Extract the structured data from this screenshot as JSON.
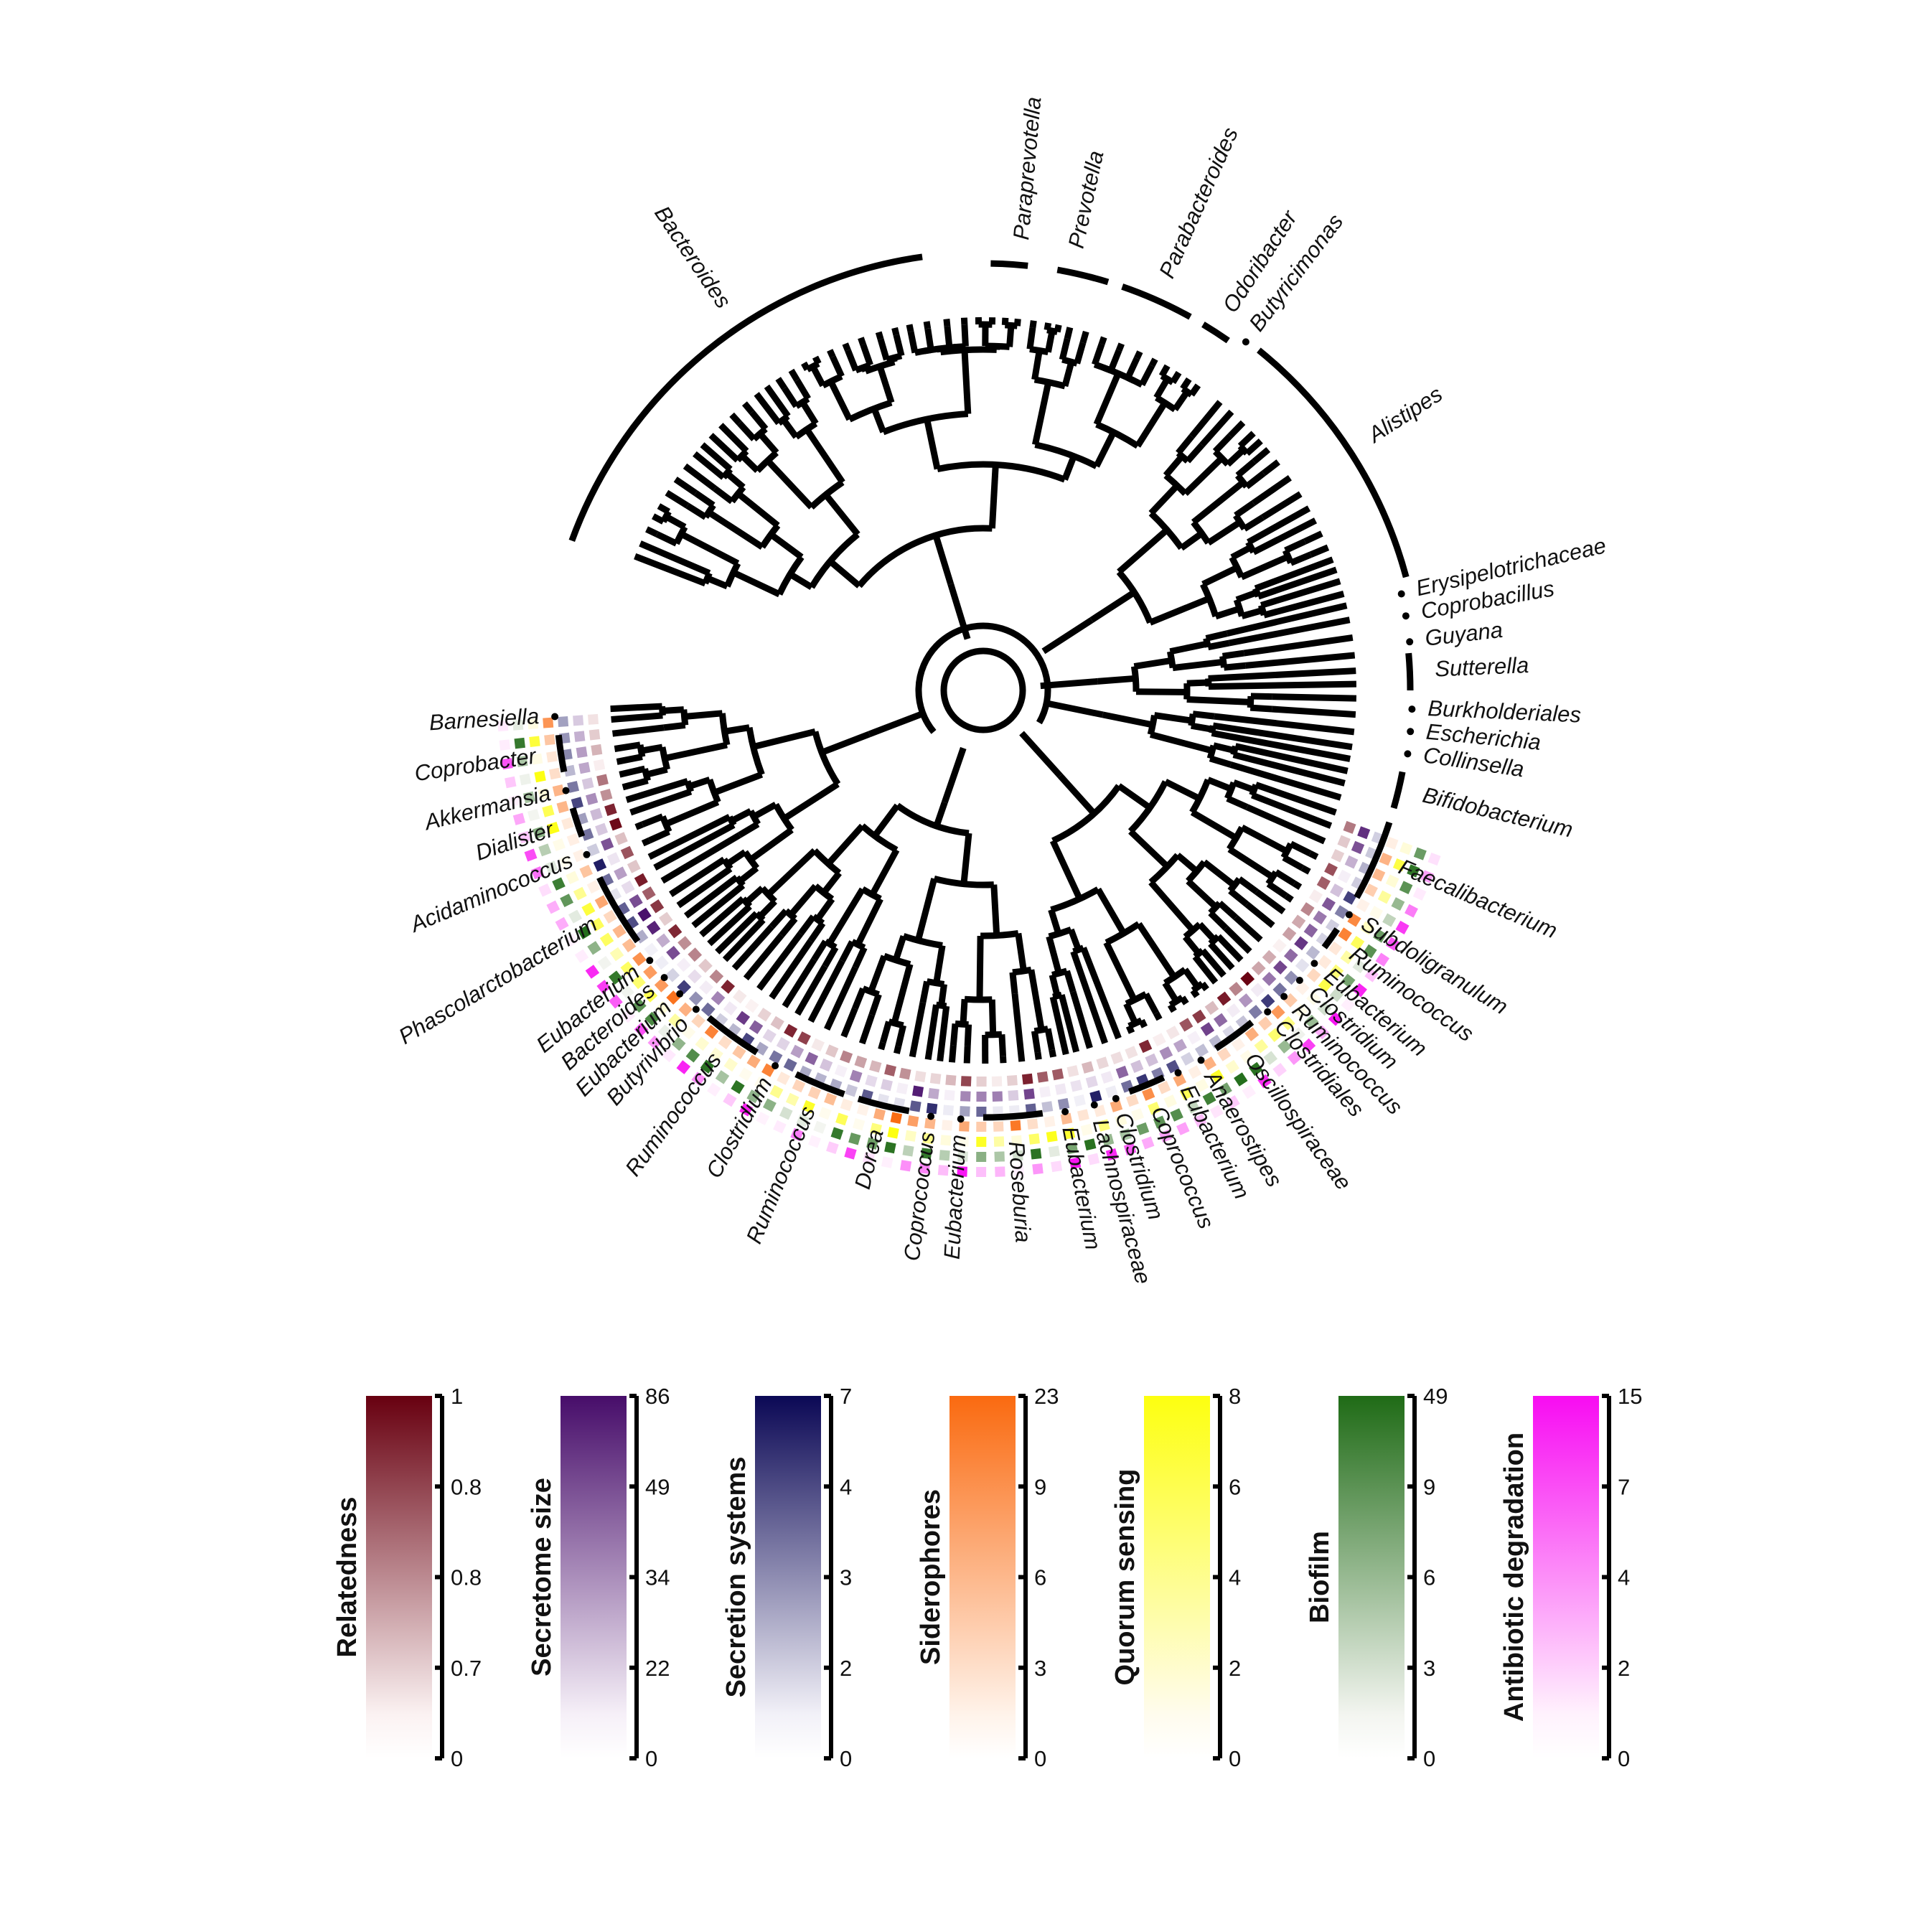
{
  "figure": {
    "genus_labels": [
      {
        "text": "Bacteroides",
        "angle": 236,
        "radius": 655,
        "bracket": [
          200,
          262
        ],
        "dot": false
      },
      {
        "text": "Paraprevotella",
        "angle": 275,
        "radius": 640,
        "bracket": [
          271,
          276
        ],
        "dot": false
      },
      {
        "text": "Prevotella",
        "angle": 282,
        "radius": 640,
        "bracket": [
          280,
          287
        ],
        "dot": false
      },
      {
        "text": "Parabacteroides",
        "angle": 294,
        "radius": 640,
        "bracket": [
          289,
          299
        ],
        "dot": false
      },
      {
        "text": "Odoribacter",
        "angle": 303,
        "radius": 640,
        "bracket": [
          301,
          305
        ],
        "dot": false
      },
      {
        "text": "Butyricimonas",
        "angle": 307,
        "radius": 640,
        "bracket": null,
        "dot": true
      },
      {
        "text": "Alistipes",
        "angle": 327,
        "radius": 655,
        "bracket": [
          309,
          345
        ],
        "dot": false
      },
      {
        "text": "Erysipelotrichaceae",
        "angle": 347,
        "radius": 630,
        "bracket": null,
        "dot": true
      },
      {
        "text": "Coprobacillus",
        "angle": 350,
        "radius": 630,
        "bracket": null,
        "dot": true
      },
      {
        "text": "Guyana",
        "angle": 353.5,
        "radius": 630,
        "bracket": null,
        "dot": true
      },
      {
        "text": "Sutterella",
        "angle": 357.5,
        "radius": 640,
        "bracket": [
          355,
          360
        ],
        "dot": false
      },
      {
        "text": "Burkholderiales",
        "angle": 2.5,
        "radius": 630,
        "bracket": null,
        "dot": true
      },
      {
        "text": "Escherichia",
        "angle": 5.5,
        "radius": 630,
        "bracket": null,
        "dot": true
      },
      {
        "text": "Collinsella",
        "angle": 8.5,
        "radius": 630,
        "bracket": null,
        "dot": true
      },
      {
        "text": "Bifidobacterium",
        "angle": 13.5,
        "radius": 640,
        "bracket": [
          11,
          16
        ],
        "dot": false
      },
      {
        "text": "Faecalibacterium",
        "angle": 23,
        "radius": 640,
        "bracket": [
          18,
          29
        ],
        "dot": false
      },
      {
        "text": "Subdoligranulum",
        "angle": 31.5,
        "radius": 630,
        "bracket": null,
        "dot": true
      },
      {
        "text": "Ruminococcus",
        "angle": 35.5,
        "radius": 640,
        "bracket": [
          34,
          37
        ],
        "dot": false
      },
      {
        "text": "Eubacterium",
        "angle": 39.5,
        "radius": 630,
        "bracket": null,
        "dot": true
      },
      {
        "text": "Clostridium",
        "angle": 42.5,
        "radius": 630,
        "bracket": null,
        "dot": true
      },
      {
        "text": "Ruminococcus",
        "angle": 45.5,
        "radius": 630,
        "bracket": null,
        "dot": true
      },
      {
        "text": "Clostridiales",
        "angle": 48.5,
        "radius": 630,
        "bracket": null,
        "dot": true
      },
      {
        "text": "Oscillospiraceae",
        "angle": 54,
        "radius": 640,
        "bracket": [
          51,
          57
        ],
        "dot": false
      },
      {
        "text": "Anaerostipes",
        "angle": 59.5,
        "radius": 630,
        "bracket": null,
        "dot": true
      },
      {
        "text": "Eubacterium",
        "angle": 63,
        "radius": 630,
        "bracket": null,
        "dot": true
      },
      {
        "text": "Coprococcus",
        "angle": 67.5,
        "radius": 640,
        "bracket": [
          65,
          70
        ],
        "dot": false
      },
      {
        "text": "Clostridium",
        "angle": 72,
        "radius": 630,
        "bracket": null,
        "dot": true
      },
      {
        "text": "Lachnospiraceae",
        "angle": 75,
        "radius": 630,
        "bracket": null,
        "dot": true
      },
      {
        "text": "Eubacterium",
        "angle": 79,
        "radius": 630,
        "bracket": null,
        "dot": true
      },
      {
        "text": "Roseburia",
        "angle": 86,
        "radius": 640,
        "bracket": [
          82,
          90
        ],
        "dot": false
      },
      {
        "text": "Eubacterium",
        "angle": 93,
        "radius": 630,
        "bracket": null,
        "dot": true
      },
      {
        "text": "Coprococcus",
        "angle": 97,
        "radius": 630,
        "bracket": null,
        "dot": true
      },
      {
        "text": "Dorea",
        "angle": 103.5,
        "radius": 640,
        "bracket": [
          100,
          107
        ],
        "dot": false
      },
      {
        "text": "Ruminococcus",
        "angle": 112.5,
        "radius": 640,
        "bracket": [
          109,
          116
        ],
        "dot": false
      },
      {
        "text": "Clostridium",
        "angle": 119,
        "radius": 630,
        "bracket": null,
        "dot": true
      },
      {
        "text": "Ruminococcus",
        "angle": 126,
        "radius": 640,
        "bracket": [
          122,
          130
        ],
        "dot": false
      },
      {
        "text": "Butyrivibrio",
        "angle": 132,
        "radius": 630,
        "bracket": null,
        "dot": true
      },
      {
        "text": "Eubacterium",
        "angle": 135,
        "radius": 630,
        "bracket": null,
        "dot": true
      },
      {
        "text": "Bacteroides",
        "angle": 138,
        "radius": 630,
        "bracket": null,
        "dot": true
      },
      {
        "text": "Eubacterium",
        "angle": 141,
        "radius": 630,
        "bracket": null,
        "dot": true
      },
      {
        "text": "Phascolarctobacterium",
        "angle": 149,
        "radius": 640,
        "bracket": [
          144,
          154
        ],
        "dot": false
      },
      {
        "text": "Acidaminococcus",
        "angle": 157.5,
        "radius": 630,
        "bracket": null,
        "dot": true
      },
      {
        "text": "Dialister",
        "angle": 162,
        "radius": 640,
        "bracket": [
          160,
          164
        ],
        "dot": false
      },
      {
        "text": "Akkermansia",
        "angle": 166.5,
        "radius": 630,
        "bracket": null,
        "dot": true
      },
      {
        "text": "Coprobacter",
        "angle": 171.5,
        "radius": 640,
        "bracket": [
          169,
          174
        ],
        "dot": false
      },
      {
        "text": "Barnesiella",
        "angle": 176.5,
        "radius": 630,
        "bracket": null,
        "dot": true
      }
    ]
  },
  "legend": [
    {
      "title": "Relatedness",
      "color_low": "#fbf2f2",
      "color_high": "#680010",
      "ticks": [
        "1",
        "0.8",
        "0.8",
        "0.7",
        "0"
      ]
    },
    {
      "title": "Secretome size",
      "color_low": "#f6f0f8",
      "color_high": "#470d6a",
      "ticks": [
        "86",
        "49",
        "34",
        "22",
        "0"
      ]
    },
    {
      "title": "Secretion systems",
      "color_low": "#f2f1f8",
      "color_high": "#0b0855",
      "ticks": [
        "7",
        "4",
        "3",
        "2",
        "0"
      ]
    },
    {
      "title": "Siderophores",
      "color_low": "#fff3ea",
      "color_high": "#fa6a10",
      "ticks": [
        "23",
        "9",
        "6",
        "3",
        "0"
      ]
    },
    {
      "title": "Quorum sensing",
      "color_low": "#fffcee",
      "color_high": "#fdff10",
      "ticks": [
        "8",
        "6",
        "4",
        "2",
        "0"
      ]
    },
    {
      "title": "Biofilm",
      "color_low": "#f3f5f0",
      "color_high": "#1f6b16",
      "ticks": [
        "49",
        "9",
        "6",
        "3",
        "0"
      ]
    },
    {
      "title": "Antibiotic degradation",
      "color_low": "#fff2fd",
      "color_high": "#f80cf2",
      "ticks": [
        "15",
        "7",
        "4",
        "2",
        "0"
      ]
    }
  ]
}
